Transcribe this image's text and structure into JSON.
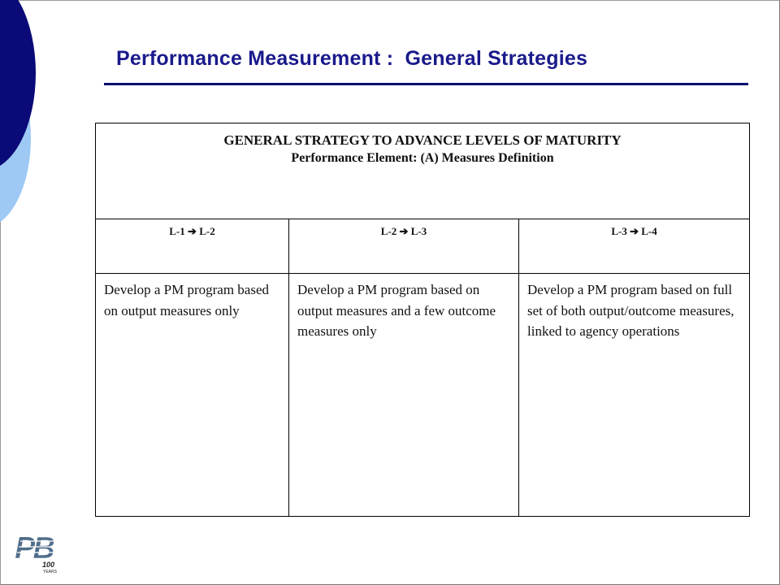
{
  "slide": {
    "title": "Performance Measurement :  General Strategies"
  },
  "table": {
    "heading": "GENERAL STRATEGY TO ADVANCE LEVELS OF MATURITY",
    "subheading": "Performance Element: (A) Measures Definition",
    "columns": [
      {
        "level": "L-1 ➔ L-2",
        "strategy": "Develop a PM program based on output measures only"
      },
      {
        "level": "L-2 ➔ L-3",
        "strategy": "Develop a PM program based on output measures and a few outcome measures only"
      },
      {
        "level": "L-3 ➔ L-4",
        "strategy": "Develop a PM  program based on full set of both output/outcome measures, linked to agency operations"
      }
    ]
  },
  "logo": {
    "letters": "PB",
    "subtext": "100",
    "subtext2": "YEARS"
  },
  "colors": {
    "title": "#1a1a8c",
    "rule": "#0c0c6e",
    "decor_dark": "#0a0a78",
    "decor_light": "#9ec9f5",
    "logo": "#4f6d8a"
  }
}
